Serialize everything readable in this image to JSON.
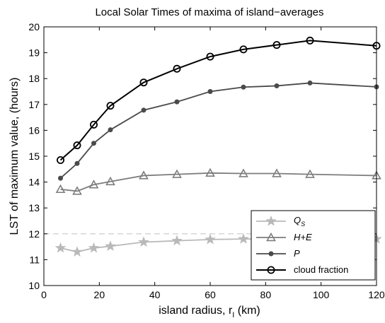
{
  "chart_data": {
    "type": "line",
    "title": "Local Solar Times of maxima of island−averages",
    "xlabel": "island radius, r",
    "xlabel_sub": "I",
    "xlabel_unit": " (km)",
    "ylabel": "LST of maximum value, (hours)",
    "xlim": [
      0,
      120
    ],
    "ylim": [
      10,
      20
    ],
    "xticks": [
      0,
      20,
      40,
      60,
      80,
      100,
      120
    ],
    "yticks": [
      10,
      11,
      12,
      13,
      14,
      15,
      16,
      17,
      18,
      19,
      20
    ],
    "grid": false,
    "legend_position": "bottom-right",
    "reference_line": {
      "y": 12,
      "style": "dashed",
      "color": "#c8c8c8"
    },
    "x": [
      6,
      12,
      18,
      24,
      36,
      48,
      60,
      72,
      84,
      96,
      120
    ],
    "series": [
      {
        "name": "Q",
        "name_sub": "S",
        "marker": "star",
        "color": "#b9b9b9",
        "values": [
          11.45,
          11.3,
          11.45,
          11.52,
          11.68,
          11.73,
          11.78,
          11.8,
          11.8,
          11.8,
          11.8
        ]
      },
      {
        "name": "H+E",
        "marker": "triangle",
        "color": "#7d7d7d",
        "values": [
          13.72,
          13.65,
          13.9,
          14.02,
          14.25,
          14.3,
          14.35,
          14.33,
          14.33,
          14.3,
          14.25
        ]
      },
      {
        "name": "P",
        "marker": "dot",
        "color": "#4a4a4a",
        "values": [
          14.15,
          14.72,
          15.5,
          16.02,
          16.78,
          17.1,
          17.5,
          17.67,
          17.72,
          17.83,
          17.68
        ]
      },
      {
        "name": "cloud fraction",
        "marker": "circle",
        "color": "#000000",
        "values": [
          14.85,
          15.42,
          16.22,
          16.95,
          17.85,
          18.38,
          18.85,
          19.13,
          19.3,
          19.47,
          19.27
        ]
      }
    ]
  }
}
